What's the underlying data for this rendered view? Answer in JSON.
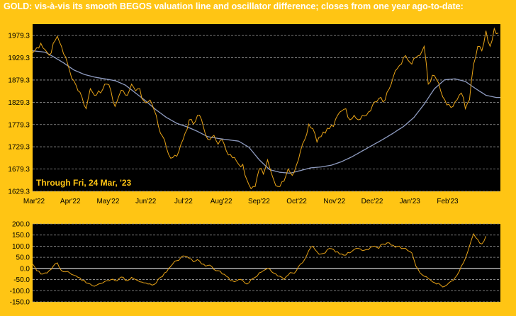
{
  "title": "GOLD:  vis-à-vis its smooth BEGOS valuation line and oscillator difference; closes from one year ago-to-date:",
  "annotation": "Through Fri, 24 Mar, '23",
  "colors": {
    "frame": "#FFC514",
    "plot_bg": "#000000",
    "price_line": "#E8A317",
    "valuation_line": "#8E9BC0",
    "osc_line": "#E8A317",
    "grid": "#9a9a9a",
    "zero_line": "#ffffff"
  },
  "chart_data": [
    {
      "type": "line",
      "title": "GOLD:  vis-à-vis its smooth BEGOS valuation line and oscillator difference; closes from one year ago-to-date:",
      "x_tick_labels": [
        "Mar'22",
        "Apr'22",
        "May'22",
        "Jun'22",
        "Jul'22",
        "Aug'22",
        "Sep'22",
        "Oct'22",
        "Nov'22",
        "Dec'22",
        "Jan'23",
        "Feb'23"
      ],
      "y_ticks": [
        1629.3,
        1679.3,
        1729.3,
        1779.3,
        1829.3,
        1879.3,
        1929.3,
        1979.3
      ],
      "ylim": [
        1629.3,
        2005
      ],
      "grid": true,
      "series": [
        {
          "role": "price",
          "anchors": [
            [
              0,
              1940
            ],
            [
              4,
              1962
            ],
            [
              8,
              1935
            ],
            [
              12,
              1978
            ],
            [
              14,
              1955
            ],
            [
              18,
              1900
            ],
            [
              20,
              1878
            ],
            [
              24,
              1840
            ],
            [
              26,
              1815
            ],
            [
              28,
              1860
            ],
            [
              30,
              1845
            ],
            [
              32,
              1855
            ],
            [
              34,
              1858
            ],
            [
              36,
              1870
            ],
            [
              38,
              1855
            ],
            [
              40,
              1820
            ],
            [
              42,
              1845
            ],
            [
              44,
              1855
            ],
            [
              46,
              1845
            ],
            [
              48,
              1870
            ],
            [
              50,
              1855
            ],
            [
              52,
              1860
            ],
            [
              53,
              1838
            ],
            [
              56,
              1830
            ],
            [
              58,
              1825
            ],
            [
              60,
              1800
            ],
            [
              62,
              1760
            ],
            [
              64,
              1745
            ],
            [
              66,
              1712
            ],
            [
              68,
              1705
            ],
            [
              70,
              1708
            ],
            [
              72,
              1735
            ],
            [
              74,
              1760
            ],
            [
              76,
              1790
            ],
            [
              78,
              1780
            ],
            [
              80,
              1800
            ],
            [
              82,
              1790
            ],
            [
              84,
              1755
            ],
            [
              86,
              1745
            ],
            [
              88,
              1755
            ],
            [
              90,
              1735
            ],
            [
              92,
              1745
            ],
            [
              94,
              1720
            ],
            [
              96,
              1712
            ],
            [
              98,
              1705
            ],
            [
              100,
              1690
            ],
            [
              102,
              1690
            ],
            [
              104,
              1655
            ],
            [
              106,
              1635
            ],
            [
              108,
              1640
            ],
            [
              110,
              1680
            ],
            [
              112,
              1668
            ],
            [
              114,
              1700
            ],
            [
              116,
              1668
            ],
            [
              118,
              1642
            ],
            [
              120,
              1640
            ],
            [
              122,
              1652
            ],
            [
              124,
              1680
            ],
            [
              126,
              1665
            ],
            [
              128,
              1688
            ],
            [
              130,
              1720
            ],
            [
              132,
              1745
            ],
            [
              134,
              1780
            ],
            [
              136,
              1770
            ],
            [
              138,
              1740
            ],
            [
              140,
              1752
            ],
            [
              142,
              1760
            ],
            [
              144,
              1770
            ],
            [
              146,
              1775
            ],
            [
              148,
              1800
            ],
            [
              150,
              1810
            ],
            [
              152,
              1815
            ],
            [
              154,
              1790
            ],
            [
              156,
              1800
            ],
            [
              158,
              1790
            ],
            [
              160,
              1800
            ],
            [
              162,
              1800
            ],
            [
              164,
              1810
            ],
            [
              166,
              1830
            ],
            [
              168,
              1838
            ],
            [
              170,
              1830
            ],
            [
              172,
              1852
            ],
            [
              174,
              1870
            ],
            [
              176,
              1900
            ],
            [
              178,
              1912
            ],
            [
              180,
              1930
            ],
            [
              182,
              1925
            ],
            [
              184,
              1915
            ],
            [
              186,
              1930
            ],
            [
              188,
              1935
            ],
            [
              190,
              1955
            ],
            [
              191,
              1918
            ],
            [
              192,
              1870
            ],
            [
              194,
              1890
            ],
            [
              196,
              1880
            ],
            [
              198,
              1855
            ],
            [
              200,
              1835
            ],
            [
              202,
              1825
            ],
            [
              204,
              1820
            ],
            [
              206,
              1835
            ],
            [
              208,
              1850
            ],
            [
              209,
              1840
            ],
            [
              210,
              1815
            ],
            [
              212,
              1835
            ],
            [
              214,
              1915
            ],
            [
              216,
              1955
            ],
            [
              218,
              1945
            ],
            [
              220,
              1990
            ],
            [
              222,
              1955
            ],
            [
              224,
              1995
            ],
            [
              226,
              1985
            ]
          ]
        },
        {
          "role": "valuation",
          "anchors": [
            [
              0,
              1945
            ],
            [
              6,
              1942
            ],
            [
              10,
              1932
            ],
            [
              15,
              1918
            ],
            [
              20,
              1902
            ],
            [
              25,
              1892
            ],
            [
              30,
              1886
            ],
            [
              35,
              1882
            ],
            [
              40,
              1878
            ],
            [
              45,
              1868
            ],
            [
              50,
              1850
            ],
            [
              55,
              1832
            ],
            [
              60,
              1812
            ],
            [
              65,
              1795
            ],
            [
              70,
              1782
            ],
            [
              75,
              1774
            ],
            [
              80,
              1764
            ],
            [
              85,
              1752
            ],
            [
              90,
              1748
            ],
            [
              95,
              1745
            ],
            [
              100,
              1742
            ],
            [
              105,
              1728
            ],
            [
              110,
              1700
            ],
            [
              115,
              1678
            ],
            [
              120,
              1672
            ],
            [
              125,
              1670
            ],
            [
              130,
              1676
            ],
            [
              135,
              1682
            ],
            [
              140,
              1684
            ],
            [
              145,
              1688
            ],
            [
              150,
              1696
            ],
            [
              155,
              1707
            ],
            [
              160,
              1720
            ],
            [
              165,
              1733
            ],
            [
              170,
              1746
            ],
            [
              175,
              1760
            ],
            [
              180,
              1775
            ],
            [
              185,
              1795
            ],
            [
              190,
              1825
            ],
            [
              195,
              1860
            ],
            [
              200,
              1880
            ],
            [
              205,
              1882
            ],
            [
              210,
              1876
            ],
            [
              215,
              1860
            ],
            [
              220,
              1845
            ],
            [
              225,
              1840
            ],
            [
              227,
              1840
            ]
          ]
        }
      ]
    },
    {
      "type": "line",
      "y_ticks": [
        -150.0,
        -100.0,
        -50.0,
        0.0,
        50.0,
        100.0,
        150.0,
        200.0
      ],
      "ylim": [
        -150,
        200
      ],
      "grid": true,
      "series": [
        {
          "role": "oscillator",
          "anchors": [
            [
              0,
              20
            ],
            [
              2,
              -10
            ],
            [
              4,
              -25
            ],
            [
              6,
              -20
            ],
            [
              8,
              -10
            ],
            [
              10,
              10
            ],
            [
              12,
              25
            ],
            [
              14,
              -10
            ],
            [
              16,
              -15
            ],
            [
              18,
              -20
            ],
            [
              20,
              -30
            ],
            [
              22,
              -40
            ],
            [
              24,
              -55
            ],
            [
              26,
              -65
            ],
            [
              28,
              -70
            ],
            [
              30,
              -80
            ],
            [
              32,
              -70
            ],
            [
              34,
              -65
            ],
            [
              36,
              -55
            ],
            [
              38,
              -50
            ],
            [
              40,
              -55
            ],
            [
              42,
              -45
            ],
            [
              44,
              -40
            ],
            [
              46,
              -55
            ],
            [
              48,
              -40
            ],
            [
              50,
              -50
            ],
            [
              52,
              -60
            ],
            [
              54,
              -65
            ],
            [
              56,
              -70
            ],
            [
              58,
              -75
            ],
            [
              60,
              -65
            ],
            [
              62,
              -40
            ],
            [
              64,
              -20
            ],
            [
              66,
              0
            ],
            [
              68,
              20
            ],
            [
              70,
              35
            ],
            [
              72,
              50
            ],
            [
              74,
              55
            ],
            [
              76,
              45
            ],
            [
              78,
              30
            ],
            [
              80,
              40
            ],
            [
              82,
              20
            ],
            [
              84,
              10
            ],
            [
              86,
              15
            ],
            [
              88,
              -5
            ],
            [
              90,
              -10
            ],
            [
              92,
              -25
            ],
            [
              94,
              -35
            ],
            [
              96,
              -55
            ],
            [
              98,
              -60
            ],
            [
              100,
              -50
            ],
            [
              102,
              -55
            ],
            [
              104,
              -70
            ],
            [
              106,
              -50
            ],
            [
              108,
              -40
            ],
            [
              110,
              -20
            ],
            [
              112,
              -10
            ],
            [
              114,
              0
            ],
            [
              116,
              -15
            ],
            [
              118,
              -25
            ],
            [
              120,
              -35
            ],
            [
              122,
              -50
            ],
            [
              124,
              -30
            ],
            [
              126,
              -20
            ],
            [
              128,
              -10
            ],
            [
              130,
              20
            ],
            [
              132,
              40
            ],
            [
              134,
              80
            ],
            [
              136,
              100
            ],
            [
              138,
              75
            ],
            [
              140,
              65
            ],
            [
              142,
              70
            ],
            [
              144,
              90
            ],
            [
              146,
              85
            ],
            [
              148,
              75
            ],
            [
              150,
              65
            ],
            [
              152,
              60
            ],
            [
              154,
              70
            ],
            [
              156,
              85
            ],
            [
              158,
              90
            ],
            [
              160,
              80
            ],
            [
              162,
              85
            ],
            [
              164,
              95
            ],
            [
              166,
              100
            ],
            [
              168,
              90
            ],
            [
              170,
              110
            ],
            [
              172,
              115
            ],
            [
              174,
              105
            ],
            [
              176,
              95
            ],
            [
              178,
              100
            ],
            [
              180,
              90
            ],
            [
              182,
              80
            ],
            [
              184,
              70
            ],
            [
              186,
              10
            ],
            [
              188,
              -20
            ],
            [
              190,
              -35
            ],
            [
              192,
              -45
            ],
            [
              194,
              -60
            ],
            [
              196,
              -70
            ],
            [
              198,
              -75
            ],
            [
              200,
              -80
            ],
            [
              202,
              -65
            ],
            [
              204,
              -55
            ],
            [
              206,
              -30
            ],
            [
              208,
              10
            ],
            [
              210,
              45
            ],
            [
              212,
              100
            ],
            [
              214,
              155
            ],
            [
              216,
              130
            ],
            [
              218,
              110
            ],
            [
              220,
              145
            ]
          ]
        }
      ]
    }
  ]
}
